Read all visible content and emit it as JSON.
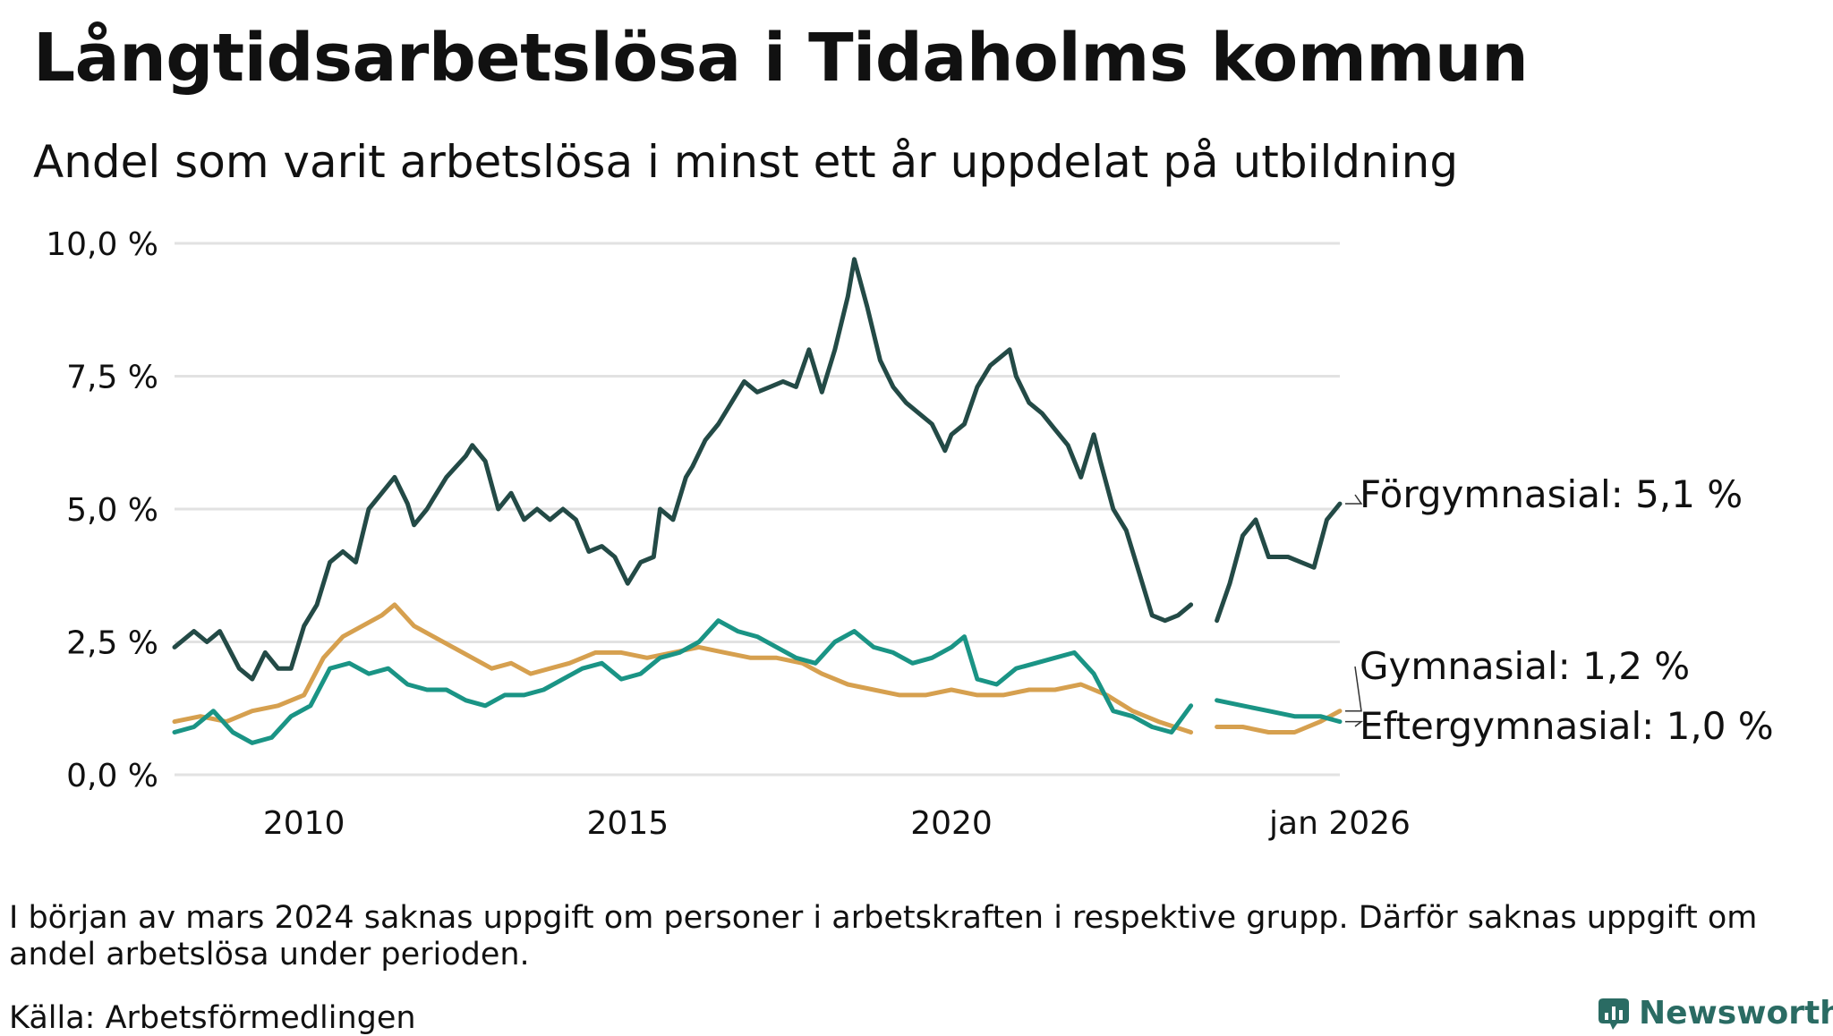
{
  "title": "Långtidsarbetslösa i Tidaholms kommun",
  "subtitle": "Andel som varit arbetslösa i minst ett år uppdelat på utbildning",
  "note": "I början av mars 2024 saknas uppgift om personer i arbetskraften i respektive grupp. Därför saknas uppgift om andel arbetslösa under perioden.",
  "source": "Källa: Arbetsförmedlingen",
  "brand": "Newsworthy",
  "colors": {
    "Förgymnasial": "#234a46",
    "Gymnasial": "#d6a04f",
    "Eftergymnasial": "#1a9485",
    "grid": "#e2e2e2",
    "brand": "#2a6b63"
  },
  "chart_data": {
    "type": "line",
    "title": "Långtidsarbetslösa i Tidaholms kommun",
    "xlabel": "",
    "ylabel": "",
    "x_range": [
      2008.0,
      2026.0
    ],
    "ylim": [
      0,
      10
    ],
    "y_ticks": [
      {
        "value": 0,
        "label": "0,0 %"
      },
      {
        "value": 2.5,
        "label": "2,5 %"
      },
      {
        "value": 5,
        "label": "5,0 %"
      },
      {
        "value": 7.5,
        "label": "7,5 %"
      },
      {
        "value": 10,
        "label": "10,0 %"
      }
    ],
    "x_ticks": [
      {
        "value": 2010,
        "label": "2010"
      },
      {
        "value": 2015,
        "label": "2015"
      },
      {
        "value": 2020,
        "label": "2020"
      },
      {
        "value": 2026.0,
        "label": "jan 2026"
      }
    ],
    "grid": true,
    "gap": [
      2023.7,
      2024.1
    ],
    "series": [
      {
        "name": "Förgymnasial",
        "end_label": "Förgymnasial: 5,1 %",
        "points": [
          [
            2008.0,
            2.4
          ],
          [
            2008.3,
            2.7
          ],
          [
            2008.5,
            2.5
          ],
          [
            2008.7,
            2.7
          ],
          [
            2009.0,
            2.0
          ],
          [
            2009.2,
            1.8
          ],
          [
            2009.4,
            2.3
          ],
          [
            2009.6,
            2.0
          ],
          [
            2009.8,
            2.0
          ],
          [
            2010.0,
            2.8
          ],
          [
            2010.2,
            3.2
          ],
          [
            2010.4,
            4.0
          ],
          [
            2010.6,
            4.2
          ],
          [
            2010.8,
            4.0
          ],
          [
            2011.0,
            5.0
          ],
          [
            2011.2,
            5.3
          ],
          [
            2011.4,
            5.6
          ],
          [
            2011.6,
            5.1
          ],
          [
            2011.7,
            4.7
          ],
          [
            2011.9,
            5.0
          ],
          [
            2012.0,
            5.2
          ],
          [
            2012.2,
            5.6
          ],
          [
            2012.5,
            6.0
          ],
          [
            2012.6,
            6.2
          ],
          [
            2012.8,
            5.9
          ],
          [
            2013.0,
            5.0
          ],
          [
            2013.2,
            5.3
          ],
          [
            2013.4,
            4.8
          ],
          [
            2013.6,
            5.0
          ],
          [
            2013.8,
            4.8
          ],
          [
            2014.0,
            5.0
          ],
          [
            2014.2,
            4.8
          ],
          [
            2014.4,
            4.2
          ],
          [
            2014.6,
            4.3
          ],
          [
            2014.8,
            4.1
          ],
          [
            2015.0,
            3.6
          ],
          [
            2015.2,
            4.0
          ],
          [
            2015.4,
            4.1
          ],
          [
            2015.5,
            5.0
          ],
          [
            2015.7,
            4.8
          ],
          [
            2015.9,
            5.6
          ],
          [
            2016.0,
            5.8
          ],
          [
            2016.2,
            6.3
          ],
          [
            2016.4,
            6.6
          ],
          [
            2016.6,
            7.0
          ],
          [
            2016.8,
            7.4
          ],
          [
            2017.0,
            7.2
          ],
          [
            2017.2,
            7.3
          ],
          [
            2017.4,
            7.4
          ],
          [
            2017.6,
            7.3
          ],
          [
            2017.8,
            8.0
          ],
          [
            2018.0,
            7.2
          ],
          [
            2018.2,
            8.0
          ],
          [
            2018.4,
            9.0
          ],
          [
            2018.5,
            9.7
          ],
          [
            2018.7,
            8.8
          ],
          [
            2018.9,
            7.8
          ],
          [
            2019.1,
            7.3
          ],
          [
            2019.3,
            7.0
          ],
          [
            2019.5,
            6.8
          ],
          [
            2019.7,
            6.6
          ],
          [
            2019.9,
            6.1
          ],
          [
            2020.0,
            6.4
          ],
          [
            2020.2,
            6.6
          ],
          [
            2020.4,
            7.3
          ],
          [
            2020.6,
            7.7
          ],
          [
            2020.8,
            7.9
          ],
          [
            2020.9,
            8.0
          ],
          [
            2021.0,
            7.5
          ],
          [
            2021.2,
            7.0
          ],
          [
            2021.4,
            6.8
          ],
          [
            2021.6,
            6.5
          ],
          [
            2021.8,
            6.2
          ],
          [
            2022.0,
            5.6
          ],
          [
            2022.2,
            6.4
          ],
          [
            2022.3,
            5.9
          ],
          [
            2022.5,
            5.0
          ],
          [
            2022.7,
            4.6
          ],
          [
            2022.9,
            3.8
          ],
          [
            2023.1,
            3.0
          ],
          [
            2023.3,
            2.9
          ],
          [
            2023.5,
            3.0
          ],
          [
            2023.7,
            3.2
          ],
          [
            2024.1,
            2.9
          ],
          [
            2024.3,
            3.6
          ],
          [
            2024.5,
            4.5
          ],
          [
            2024.7,
            4.8
          ],
          [
            2024.9,
            4.1
          ],
          [
            2025.2,
            4.1
          ],
          [
            2025.4,
            4.0
          ],
          [
            2025.6,
            3.9
          ],
          [
            2025.8,
            4.8
          ],
          [
            2026.0,
            5.1
          ]
        ]
      },
      {
        "name": "Gymnasial",
        "end_label": "Gymnasial: 1,2 %",
        "points": [
          [
            2008.0,
            1.0
          ],
          [
            2008.4,
            1.1
          ],
          [
            2008.8,
            1.0
          ],
          [
            2009.2,
            1.2
          ],
          [
            2009.6,
            1.3
          ],
          [
            2010.0,
            1.5
          ],
          [
            2010.3,
            2.2
          ],
          [
            2010.6,
            2.6
          ],
          [
            2010.9,
            2.8
          ],
          [
            2011.2,
            3.0
          ],
          [
            2011.4,
            3.2
          ],
          [
            2011.7,
            2.8
          ],
          [
            2012.0,
            2.6
          ],
          [
            2012.3,
            2.4
          ],
          [
            2012.6,
            2.2
          ],
          [
            2012.9,
            2.0
          ],
          [
            2013.2,
            2.1
          ],
          [
            2013.5,
            1.9
          ],
          [
            2013.8,
            2.0
          ],
          [
            2014.1,
            2.1
          ],
          [
            2014.5,
            2.3
          ],
          [
            2014.9,
            2.3
          ],
          [
            2015.3,
            2.2
          ],
          [
            2015.7,
            2.3
          ],
          [
            2016.1,
            2.4
          ],
          [
            2016.5,
            2.3
          ],
          [
            2016.9,
            2.2
          ],
          [
            2017.3,
            2.2
          ],
          [
            2017.7,
            2.1
          ],
          [
            2018.0,
            1.9
          ],
          [
            2018.4,
            1.7
          ],
          [
            2018.8,
            1.6
          ],
          [
            2019.2,
            1.5
          ],
          [
            2019.6,
            1.5
          ],
          [
            2020.0,
            1.6
          ],
          [
            2020.4,
            1.5
          ],
          [
            2020.8,
            1.5
          ],
          [
            2021.2,
            1.6
          ],
          [
            2021.6,
            1.6
          ],
          [
            2022.0,
            1.7
          ],
          [
            2022.4,
            1.5
          ],
          [
            2022.8,
            1.2
          ],
          [
            2023.2,
            1.0
          ],
          [
            2023.7,
            0.8
          ],
          [
            2024.1,
            0.9
          ],
          [
            2024.5,
            0.9
          ],
          [
            2024.9,
            0.8
          ],
          [
            2025.3,
            0.8
          ],
          [
            2025.7,
            1.0
          ],
          [
            2026.0,
            1.2
          ]
        ]
      },
      {
        "name": "Eftergymnasial",
        "end_label": "Eftergymnasial: 1,0 %",
        "points": [
          [
            2008.0,
            0.8
          ],
          [
            2008.3,
            0.9
          ],
          [
            2008.6,
            1.2
          ],
          [
            2008.9,
            0.8
          ],
          [
            2009.2,
            0.6
          ],
          [
            2009.5,
            0.7
          ],
          [
            2009.8,
            1.1
          ],
          [
            2010.1,
            1.3
          ],
          [
            2010.4,
            2.0
          ],
          [
            2010.7,
            2.1
          ],
          [
            2011.0,
            1.9
          ],
          [
            2011.3,
            2.0
          ],
          [
            2011.6,
            1.7
          ],
          [
            2011.9,
            1.6
          ],
          [
            2012.2,
            1.6
          ],
          [
            2012.5,
            1.4
          ],
          [
            2012.8,
            1.3
          ],
          [
            2013.1,
            1.5
          ],
          [
            2013.4,
            1.5
          ],
          [
            2013.7,
            1.6
          ],
          [
            2014.0,
            1.8
          ],
          [
            2014.3,
            2.0
          ],
          [
            2014.6,
            2.1
          ],
          [
            2014.9,
            1.8
          ],
          [
            2015.2,
            1.9
          ],
          [
            2015.5,
            2.2
          ],
          [
            2015.8,
            2.3
          ],
          [
            2016.1,
            2.5
          ],
          [
            2016.4,
            2.9
          ],
          [
            2016.7,
            2.7
          ],
          [
            2017.0,
            2.6
          ],
          [
            2017.3,
            2.4
          ],
          [
            2017.6,
            2.2
          ],
          [
            2017.9,
            2.1
          ],
          [
            2018.2,
            2.5
          ],
          [
            2018.5,
            2.7
          ],
          [
            2018.8,
            2.4
          ],
          [
            2019.1,
            2.3
          ],
          [
            2019.4,
            2.1
          ],
          [
            2019.7,
            2.2
          ],
          [
            2020.0,
            2.4
          ],
          [
            2020.2,
            2.6
          ],
          [
            2020.4,
            1.8
          ],
          [
            2020.7,
            1.7
          ],
          [
            2021.0,
            2.0
          ],
          [
            2021.3,
            2.1
          ],
          [
            2021.6,
            2.2
          ],
          [
            2021.9,
            2.3
          ],
          [
            2022.2,
            1.9
          ],
          [
            2022.5,
            1.2
          ],
          [
            2022.8,
            1.1
          ],
          [
            2023.1,
            0.9
          ],
          [
            2023.4,
            0.8
          ],
          [
            2023.7,
            1.3
          ],
          [
            2024.1,
            1.4
          ],
          [
            2024.5,
            1.3
          ],
          [
            2024.9,
            1.2
          ],
          [
            2025.3,
            1.1
          ],
          [
            2025.7,
            1.1
          ],
          [
            2026.0,
            1.0
          ]
        ]
      }
    ]
  }
}
